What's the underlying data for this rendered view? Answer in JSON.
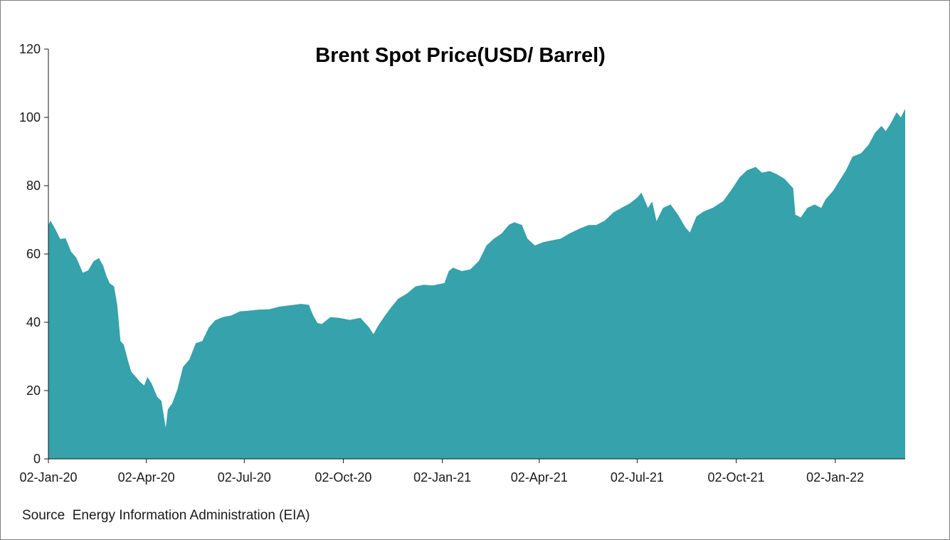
{
  "source_note": "Source  Energy Information Administration (EIA)",
  "chart_data": {
    "type": "area",
    "title": "Brent Spot Price(USD/ Barrel)",
    "xlabel": "",
    "ylabel": "",
    "ylim": [
      0,
      120
    ],
    "yticks": [
      0,
      20,
      40,
      60,
      80,
      100,
      120
    ],
    "xlim": [
      "2020-01-02",
      "2022-03-08"
    ],
    "xticks": [
      "2020-01-02",
      "2020-04-02",
      "2020-07-02",
      "2020-10-02",
      "2021-01-02",
      "2021-04-02",
      "2021-07-02",
      "2021-10-02",
      "2022-01-02"
    ],
    "xtick_labels": [
      "02-Jan-20",
      "02-Apr-20",
      "02-Jul-20",
      "02-Oct-20",
      "02-Jan-21",
      "02-Apr-21",
      "02-Jul-21",
      "02-Oct-21",
      "02-Jan-22"
    ],
    "grid": false,
    "legend": "none",
    "color": "#35a2ac",
    "series": [
      {
        "x": [
          "2020-01-02",
          "2020-01-04",
          "2020-01-08",
          "2020-01-13",
          "2020-01-18",
          "2020-01-23",
          "2020-01-28",
          "2020-02-03",
          "2020-02-08",
          "2020-02-13",
          "2020-02-18",
          "2020-02-22",
          "2020-02-25",
          "2020-02-28",
          "2020-03-03",
          "2020-03-06",
          "2020-03-09",
          "2020-03-12",
          "2020-03-16",
          "2020-03-19",
          "2020-03-23",
          "2020-03-27",
          "2020-03-31",
          "2020-04-03",
          "2020-04-07",
          "2020-04-12",
          "2020-04-16",
          "2020-04-20",
          "2020-04-22",
          "2020-04-26",
          "2020-05-01",
          "2020-05-06",
          "2020-05-12",
          "2020-05-18",
          "2020-05-24",
          "2020-05-30",
          "2020-06-05",
          "2020-06-12",
          "2020-06-20",
          "2020-06-28",
          "2020-07-06",
          "2020-07-15",
          "2020-07-25",
          "2020-08-04",
          "2020-08-14",
          "2020-08-24",
          "2020-08-31",
          "2020-09-04",
          "2020-09-08",
          "2020-09-12",
          "2020-09-20",
          "2020-09-28",
          "2020-10-08",
          "2020-10-18",
          "2020-10-26",
          "2020-10-30",
          "2020-11-03",
          "2020-11-09",
          "2020-11-15",
          "2020-11-22",
          "2020-11-30",
          "2020-12-08",
          "2020-12-16",
          "2020-12-24",
          "2021-01-04",
          "2021-01-08",
          "2021-01-12",
          "2021-01-20",
          "2021-01-28",
          "2021-02-05",
          "2021-02-12",
          "2021-02-19",
          "2021-02-26",
          "2021-03-05",
          "2021-03-10",
          "2021-03-17",
          "2021-03-22",
          "2021-03-29",
          "2021-04-06",
          "2021-04-14",
          "2021-04-22",
          "2021-04-30",
          "2021-05-10",
          "2021-05-18",
          "2021-05-25",
          "2021-06-02",
          "2021-06-10",
          "2021-06-18",
          "2021-06-25",
          "2021-07-02",
          "2021-07-06",
          "2021-07-12",
          "2021-07-16",
          "2021-07-20",
          "2021-07-26",
          "2021-08-02",
          "2021-08-09",
          "2021-08-16",
          "2021-08-20",
          "2021-08-26",
          "2021-09-02",
          "2021-09-10",
          "2021-09-20",
          "2021-09-28",
          "2021-10-05",
          "2021-10-12",
          "2021-10-20",
          "2021-10-26",
          "2021-11-02",
          "2021-11-08",
          "2021-11-16",
          "2021-11-24",
          "2021-11-26",
          "2021-12-01",
          "2021-12-07",
          "2021-12-14",
          "2021-12-20",
          "2021-12-24",
          "2021-12-31",
          "2022-01-06",
          "2022-01-12",
          "2022-01-18",
          "2022-01-26",
          "2022-02-02",
          "2022-02-08",
          "2022-02-14",
          "2022-02-18",
          "2022-02-23",
          "2022-02-28",
          "2022-03-04",
          "2022-03-08"
        ],
        "y": [
          68.5,
          69.8,
          67.5,
          64.4,
          64.6,
          60.7,
          58.9,
          54.5,
          55.2,
          57.9,
          58.8,
          56.5,
          53.5,
          51.4,
          50.5,
          45.0,
          34.5,
          33.5,
          28.7,
          25.5,
          24.1,
          22.6,
          21.5,
          24.0,
          22.0,
          18.2,
          17.0,
          9.1,
          14.5,
          16.2,
          20.5,
          26.9,
          29.1,
          33.9,
          34.5,
          38.5,
          40.6,
          41.5,
          42.0,
          43.2,
          43.4,
          43.7,
          43.8,
          44.6,
          45.0,
          45.4,
          45.1,
          42.0,
          39.8,
          39.5,
          41.5,
          41.3,
          40.7,
          41.3,
          38.5,
          36.5,
          38.8,
          41.6,
          44.2,
          46.9,
          48.4,
          50.5,
          51.0,
          50.8,
          51.5,
          55.0,
          56.0,
          55.0,
          55.5,
          58.0,
          62.5,
          64.5,
          66.0,
          68.6,
          69.3,
          68.5,
          64.5,
          62.5,
          63.5,
          64.0,
          64.5,
          66.0,
          67.5,
          68.5,
          68.5,
          69.8,
          72.2,
          73.6,
          74.8,
          76.5,
          78.0,
          73.5,
          75.4,
          69.6,
          73.5,
          74.5,
          71.5,
          67.7,
          66.3,
          71.0,
          72.5,
          73.5,
          75.5,
          79.0,
          82.4,
          84.5,
          85.5,
          83.8,
          84.3,
          83.5,
          82.0,
          79.2,
          71.5,
          70.7,
          73.5,
          74.5,
          73.5,
          76.0,
          78.5,
          81.5,
          84.5,
          88.5,
          89.5,
          92.0,
          95.5,
          97.5,
          96.0,
          98.5,
          101.5,
          100.0,
          102.5
        ]
      }
    ]
  }
}
